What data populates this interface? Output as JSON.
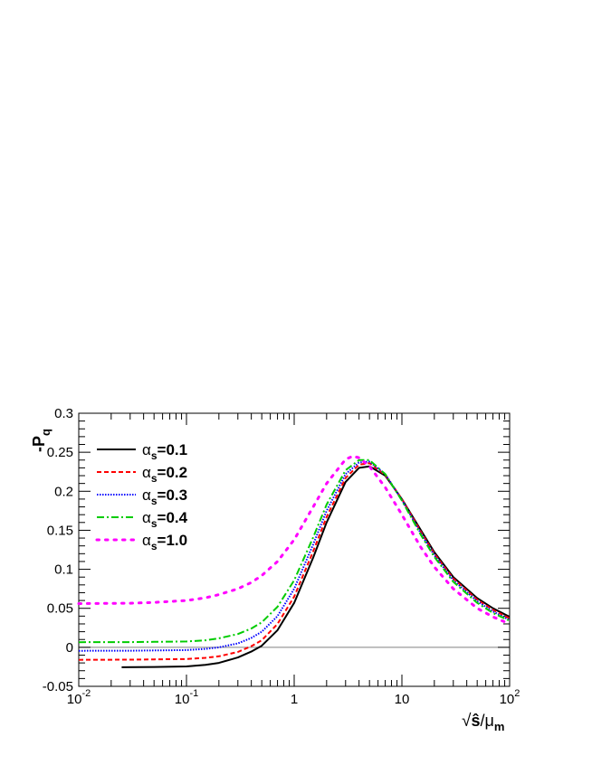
{
  "chart_data": {
    "type": "line",
    "xlabel": "√ŝ/μ_m",
    "xlabel_parts": {
      "root": "√",
      "s": "ŝ",
      "slash": "/",
      "mu": "μ",
      "mu_sub": "m"
    },
    "ylabel": "-P_q",
    "ylabel_parts": {
      "main": "-P",
      "sub": "q"
    },
    "x_scale": "log",
    "xlim": [
      0.01,
      100
    ],
    "ylim": [
      -0.05,
      0.3
    ],
    "x_ticks": [
      {
        "value": 0.01,
        "base": "10",
        "exp": "-2"
      },
      {
        "value": 0.1,
        "base": "10",
        "exp": "-1"
      },
      {
        "value": 1,
        "base": "1",
        "exp": ""
      },
      {
        "value": 10,
        "base": "10",
        "exp": ""
      },
      {
        "value": 100,
        "base": "10",
        "exp": "2"
      }
    ],
    "y_ticks": [
      -0.05,
      0,
      0.05,
      0.1,
      0.15,
      0.2,
      0.25,
      0.3
    ],
    "y_tick_labels": [
      "-0.05",
      "0",
      "0.05",
      "0.1",
      "0.15",
      "0.2",
      "0.25",
      "0.3"
    ],
    "reference_line": 0,
    "grid": false,
    "legend_position": "top-left",
    "series": [
      {
        "name": "α_s=0.1",
        "label_parts": {
          "alpha": "α",
          "sub": "s",
          "rest": "=0.1"
        },
        "color": "#000000",
        "style": "solid",
        "x": [
          0.025,
          0.05,
          0.1,
          0.15,
          0.2,
          0.3,
          0.4,
          0.5,
          0.7,
          1,
          1.5,
          2,
          3,
          4,
          5,
          7,
          10,
          15,
          20,
          30,
          50,
          70,
          100
        ],
        "y": [
          -0.0255,
          -0.0252,
          -0.0245,
          -0.0225,
          -0.02,
          -0.013,
          -0.0055,
          0.002,
          0.022,
          0.057,
          0.115,
          0.16,
          0.212,
          0.23,
          0.232,
          0.22,
          0.19,
          0.15,
          0.122,
          0.09,
          0.063,
          0.05,
          0.039
        ]
      },
      {
        "name": "α_s=0.2",
        "label_parts": {
          "alpha": "α",
          "sub": "s",
          "rest": "=0.2"
        },
        "color": "#ff0000",
        "style": "dashed",
        "x": [
          0.01,
          0.03,
          0.05,
          0.1,
          0.15,
          0.2,
          0.3,
          0.4,
          0.5,
          0.7,
          1,
          1.5,
          2,
          3,
          4,
          5,
          7,
          10,
          15,
          20,
          30,
          50,
          70,
          100
        ],
        "y": [
          -0.016,
          -0.0158,
          -0.0155,
          -0.015,
          -0.0135,
          -0.0115,
          -0.006,
          0.0015,
          0.009,
          0.03,
          0.065,
          0.123,
          0.167,
          0.217,
          0.234,
          0.236,
          0.221,
          0.19,
          0.148,
          0.12,
          0.088,
          0.061,
          0.048,
          0.037
        ]
      },
      {
        "name": "α_s=0.3",
        "label_parts": {
          "alpha": "α",
          "sub": "s",
          "rest": "=0.3"
        },
        "color": "#0000ff",
        "style": "dotted",
        "x": [
          0.01,
          0.03,
          0.05,
          0.1,
          0.15,
          0.2,
          0.3,
          0.4,
          0.5,
          0.7,
          1,
          1.5,
          2,
          3,
          4,
          5,
          7,
          10,
          15,
          20,
          30,
          50,
          70,
          100
        ],
        "y": [
          -0.0045,
          -0.0043,
          -0.004,
          -0.0035,
          -0.002,
          0,
          0.005,
          0.012,
          0.02,
          0.04,
          0.075,
          0.132,
          0.175,
          0.222,
          0.237,
          0.238,
          0.222,
          0.189,
          0.146,
          0.118,
          0.086,
          0.059,
          0.046,
          0.035
        ]
      },
      {
        "name": "α_s=0.4",
        "label_parts": {
          "alpha": "α",
          "sub": "s",
          "rest": "=0.4"
        },
        "color": "#00cc00",
        "style": "dashdot",
        "x": [
          0.01,
          0.03,
          0.05,
          0.1,
          0.15,
          0.2,
          0.3,
          0.4,
          0.5,
          0.7,
          1,
          1.5,
          2,
          3,
          4,
          5,
          7,
          10,
          15,
          20,
          30,
          50,
          70,
          100
        ],
        "y": [
          0.0065,
          0.0067,
          0.007,
          0.0075,
          0.009,
          0.0115,
          0.017,
          0.024,
          0.032,
          0.052,
          0.086,
          0.141,
          0.183,
          0.227,
          0.24,
          0.24,
          0.222,
          0.188,
          0.144,
          0.116,
          0.084,
          0.057,
          0.044,
          0.034
        ]
      },
      {
        "name": "α_s=1.0",
        "label_parts": {
          "alpha": "α",
          "sub": "s",
          "rest": "=1.0"
        },
        "color": "#ff00ff",
        "style": "sparse-dotted",
        "x": [
          0.01,
          0.03,
          0.05,
          0.1,
          0.15,
          0.2,
          0.3,
          0.4,
          0.5,
          0.7,
          1,
          1.5,
          2,
          3,
          3.5,
          4,
          5,
          7,
          10,
          15,
          20,
          30,
          50,
          70,
          100
        ],
        "y": [
          0.056,
          0.0565,
          0.0575,
          0.06,
          0.0635,
          0.0675,
          0.075,
          0.083,
          0.092,
          0.11,
          0.138,
          0.18,
          0.21,
          0.241,
          0.245,
          0.243,
          0.232,
          0.205,
          0.17,
          0.128,
          0.103,
          0.075,
          0.05,
          0.039,
          0.03
        ]
      }
    ]
  }
}
